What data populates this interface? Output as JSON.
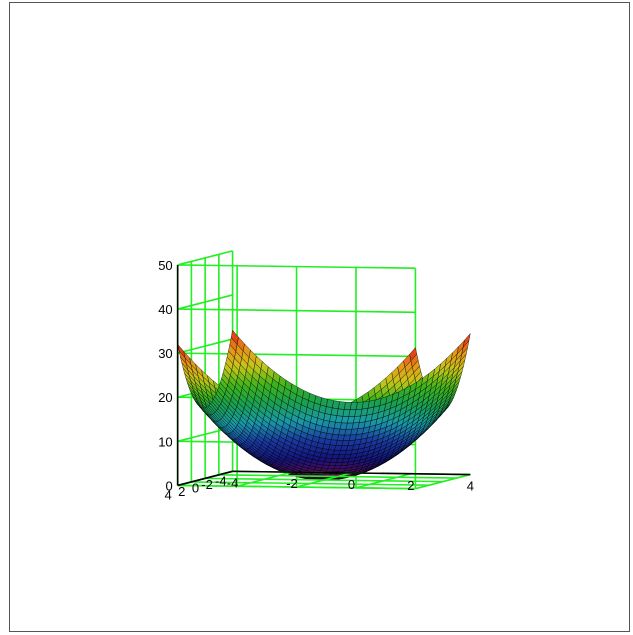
{
  "chart_data": {
    "type": "surface",
    "title": "",
    "function": "z = x^2 + y^2",
    "x": {
      "label": "",
      "range": [
        -4,
        4
      ],
      "tick_labels": [
        "-4",
        "-2",
        "0",
        "2",
        "4"
      ]
    },
    "y": {
      "label": "",
      "range": [
        -4,
        4
      ],
      "tick_labels": [
        "-4",
        "-2",
        "0",
        "2",
        "4"
      ]
    },
    "z": {
      "label": "",
      "range": [
        0,
        50
      ],
      "tick_labels": [
        "0",
        "10",
        "20",
        "30",
        "40",
        "50"
      ]
    },
    "surface_z_range": [
      0,
      32
    ],
    "colormap": [
      "#6a0a4a",
      "#14147a",
      "#1a3aa0",
      "#1a9aa8",
      "#1aa050",
      "#3cb41a",
      "#c8c81a",
      "#e89018",
      "#e01414"
    ],
    "mesh_color": "#000000",
    "grid_color": "#22ee22",
    "grid": true,
    "legend": "none"
  }
}
